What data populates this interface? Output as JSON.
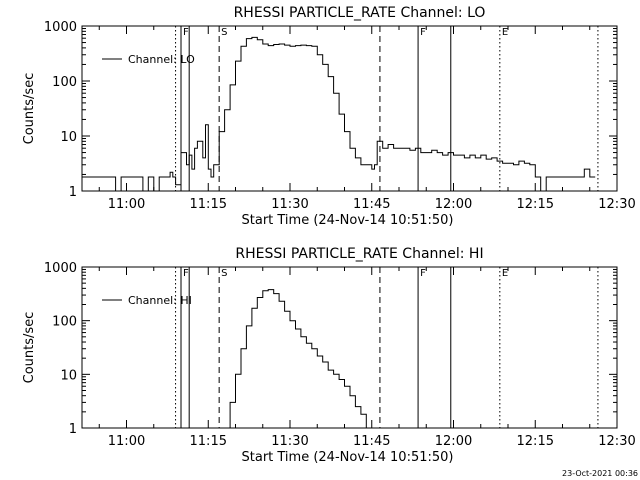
{
  "footer": {
    "timestamp": "23-Oct-2021 00:36"
  },
  "chart_data": [
    {
      "type": "line",
      "title": "RHESSI PARTICLE_RATE Channel: LO",
      "xlabel": "Start Time (24-Nov-14 10:51:50)",
      "ylabel": "Counts/sec",
      "yscale": "log",
      "ylim": [
        1,
        1000
      ],
      "xlim": [
        "10:51:50",
        "12:30:00"
      ],
      "x_ticks": [
        "11:00",
        "11:15",
        "11:30",
        "11:45",
        "12:00",
        "12:15",
        "12:30"
      ],
      "y_ticks": [
        "1",
        "10",
        "100",
        "1000"
      ],
      "legend": {
        "label": "Channel: LO",
        "position": "top-left"
      },
      "markers": [
        {
          "time": "11:09:00",
          "style": "dotted",
          "label": ""
        },
        {
          "time": "11:10:00",
          "style": "solid",
          "label": "F"
        },
        {
          "time": "11:11:30",
          "style": "solid",
          "label": ""
        },
        {
          "time": "11:17:00",
          "style": "dashed",
          "label": "S"
        },
        {
          "time": "11:46:30",
          "style": "dashed",
          "label": ""
        },
        {
          "time": "11:53:30",
          "style": "solid",
          "label": "F"
        },
        {
          "time": "11:59:30",
          "style": "solid",
          "label": ""
        },
        {
          "time": "12:08:30",
          "style": "dotted",
          "label": "E"
        },
        {
          "time": "12:26:30",
          "style": "dotted",
          "label": ""
        }
      ],
      "series": [
        {
          "name": "Channel: LO",
          "x": [
            "10:51:50",
            "10:52",
            "10:54",
            "10:56",
            "10:57",
            "10:58",
            "10:59",
            "11:00",
            "11:01",
            "11:02",
            "11:03",
            "11:04",
            "11:05",
            "11:06",
            "11:07",
            "11:08",
            "11:08:30",
            "11:09",
            "11:10",
            "11:11",
            "11:11:30",
            "11:12",
            "11:12:30",
            "11:13",
            "11:14",
            "11:14:30",
            "11:15",
            "11:15:30",
            "11:16",
            "11:17",
            "11:18",
            "11:19",
            "11:20",
            "11:21",
            "11:22",
            "11:23",
            "11:24",
            "11:25",
            "11:26",
            "11:27",
            "11:28",
            "11:29",
            "11:30",
            "11:31",
            "11:32",
            "11:33",
            "11:34",
            "11:35",
            "11:36",
            "11:37",
            "11:38",
            "11:39",
            "11:40",
            "11:41",
            "11:42",
            "11:43",
            "11:44",
            "11:45",
            "11:45:30",
            "11:46",
            "11:47",
            "11:48",
            "11:49",
            "11:50",
            "11:51",
            "11:52",
            "11:53",
            "11:54",
            "11:55",
            "11:56",
            "11:57",
            "11:58",
            "11:59",
            "12:00",
            "12:01",
            "12:02",
            "12:03",
            "12:04",
            "12:05",
            "12:06",
            "12:07",
            "12:08",
            "12:09",
            "12:10",
            "12:11",
            "12:12",
            "12:13",
            "12:14",
            "12:15",
            "12:16",
            "12:17",
            "12:18",
            "12:19",
            "12:20",
            "12:21",
            "12:22",
            "12:23",
            "12:24",
            "12:25",
            "12:26"
          ],
          "y": [
            1.8,
            1.8,
            1.8,
            1.8,
            1.8,
            1.0,
            1.8,
            1.8,
            1.8,
            1.8,
            1.0,
            1.8,
            1.0,
            1.8,
            1.8,
            2.2,
            1.8,
            1.3,
            5,
            3,
            4.5,
            2.5,
            6,
            8,
            4,
            16,
            2.5,
            1.8,
            3,
            12,
            30,
            85,
            230,
            430,
            590,
            620,
            560,
            470,
            440,
            460,
            470,
            450,
            430,
            440,
            450,
            440,
            430,
            300,
            200,
            120,
            60,
            25,
            12,
            6,
            4,
            3,
            3,
            2.5,
            3,
            8,
            6,
            7,
            6,
            6,
            6,
            5.5,
            6,
            5,
            5,
            5.5,
            5,
            4.5,
            5,
            4.5,
            4.5,
            4,
            4.5,
            4,
            4.5,
            3.8,
            4,
            3.5,
            3.2,
            3.2,
            3,
            3.5,
            3.2,
            3,
            1.8,
            1.0,
            1.8,
            1.8,
            1.8,
            1.8,
            1.8,
            1.8,
            1.8,
            2.5,
            1.8,
            1.8
          ]
        }
      ]
    },
    {
      "type": "line",
      "title": "RHESSI PARTICLE_RATE Channel: HI",
      "xlabel": "Start Time (24-Nov-14 10:51:50)",
      "ylabel": "Counts/sec",
      "yscale": "log",
      "ylim": [
        1,
        1000
      ],
      "xlim": [
        "10:51:50",
        "12:30:00"
      ],
      "x_ticks": [
        "11:00",
        "11:15",
        "11:30",
        "11:45",
        "12:00",
        "12:15",
        "12:30"
      ],
      "y_ticks": [
        "1",
        "10",
        "100",
        "1000"
      ],
      "legend": {
        "label": "Channel: HI",
        "position": "top-left"
      },
      "markers": [
        {
          "time": "11:09:00",
          "style": "dotted",
          "label": ""
        },
        {
          "time": "11:10:00",
          "style": "solid",
          "label": "F"
        },
        {
          "time": "11:11:30",
          "style": "solid",
          "label": ""
        },
        {
          "time": "11:17:00",
          "style": "dashed",
          "label": "S"
        },
        {
          "time": "11:46:30",
          "style": "dashed",
          "label": ""
        },
        {
          "time": "11:53:30",
          "style": "solid",
          "label": "F"
        },
        {
          "time": "11:59:30",
          "style": "solid",
          "label": ""
        },
        {
          "time": "12:08:30",
          "style": "dotted",
          "label": "E"
        },
        {
          "time": "12:26:30",
          "style": "dotted",
          "label": ""
        }
      ],
      "series": [
        {
          "name": "Channel: HI",
          "x": [
            "11:18",
            "11:19",
            "11:20",
            "11:21",
            "11:22",
            "11:23",
            "11:24",
            "11:25",
            "11:26",
            "11:27",
            "11:28",
            "11:29",
            "11:30",
            "11:31",
            "11:32",
            "11:33",
            "11:34",
            "11:35",
            "11:36",
            "11:37",
            "11:38",
            "11:39",
            "11:40",
            "11:41",
            "11:42",
            "11:43",
            "11:44"
          ],
          "y": [
            1.0,
            3,
            10,
            30,
            80,
            170,
            270,
            360,
            380,
            320,
            230,
            150,
            100,
            70,
            50,
            38,
            30,
            22,
            17,
            12,
            10,
            8,
            6,
            4,
            2.5,
            1.8,
            1.0
          ]
        }
      ]
    }
  ]
}
